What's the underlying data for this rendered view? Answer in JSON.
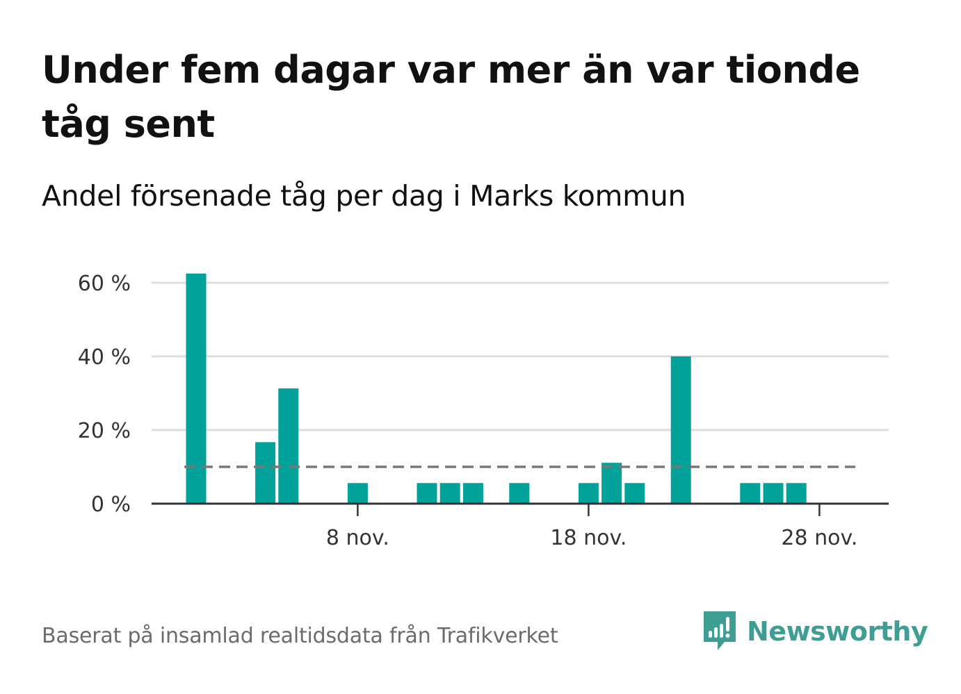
{
  "title": "Under fem dagar var mer än var tionde tåg sent",
  "subtitle": "Andel försenade tåg per dag i Marks kommun",
  "source": "Baserat på insamlad realtidsdata från Trafikverket",
  "brand": {
    "name": "Newsworthy",
    "icon": "newsworthy-logo-icon",
    "color": "#3f9e93"
  },
  "colors": {
    "bar": "#00a29a",
    "grid": "#dddddd",
    "axis": "#333333",
    "reference": "#777777"
  },
  "chart_data": {
    "type": "bar",
    "x_unit": "day of November",
    "x": [
      1,
      2,
      3,
      4,
      5,
      6,
      7,
      8,
      9,
      10,
      11,
      12,
      13,
      14,
      15,
      16,
      17,
      18,
      19,
      20,
      21,
      22,
      23,
      24,
      25,
      26,
      27,
      28,
      29
    ],
    "values": [
      62.5,
      0,
      0,
      16.7,
      31.3,
      0,
      0,
      5.6,
      0,
      0,
      5.6,
      5.6,
      5.6,
      0,
      5.6,
      0,
      0,
      5.6,
      11.1,
      5.6,
      0,
      40,
      0,
      0,
      5.6,
      5.6,
      5.6,
      0,
      0
    ],
    "ylim": [
      0,
      70
    ],
    "yticks": [
      0,
      20,
      40,
      60
    ],
    "ytick_labels": [
      "0 %",
      "20 %",
      "40 %",
      "60 %"
    ],
    "xticks": [
      8,
      18,
      28
    ],
    "xtick_labels": [
      "8 nov.",
      "18 nov.",
      "28 nov."
    ],
    "reference_line": {
      "value": 10,
      "style": "dashed"
    },
    "grid": true,
    "xlabel": "",
    "ylabel": ""
  }
}
